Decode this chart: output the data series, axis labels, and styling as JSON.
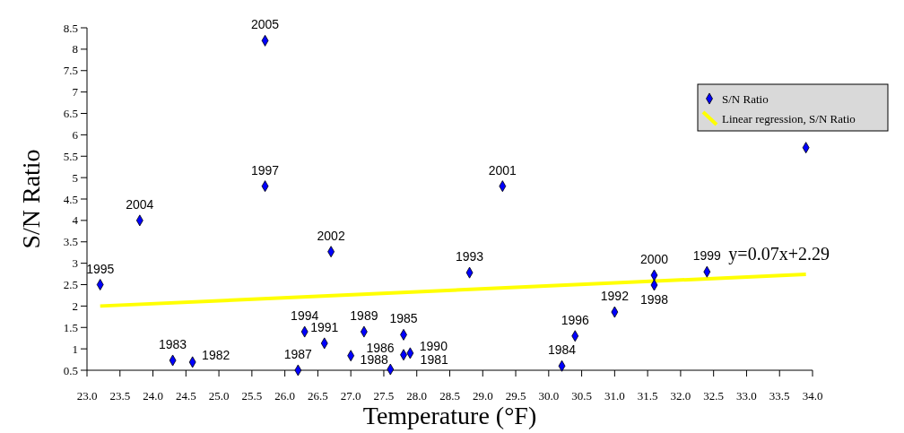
{
  "chart_data": {
    "type": "scatter",
    "xlabel": "Temperature (°F)",
    "ylabel": "S/N Ratio",
    "xlim": [
      23,
      34
    ],
    "ylim": [
      0.5,
      8.5
    ],
    "xticks": [
      {
        "value": 23,
        "label": "23.0"
      },
      {
        "value": 23.5,
        "label": "23.5"
      },
      {
        "value": 24,
        "label": "24.0"
      },
      {
        "value": 24.5,
        "label": "24.5"
      },
      {
        "value": 25,
        "label": "25.0"
      },
      {
        "value": 25.5,
        "label": "25.5"
      },
      {
        "value": 26,
        "label": "26.0"
      },
      {
        "value": 26.5,
        "label": "26.5"
      },
      {
        "value": 27,
        "label": "27.0"
      },
      {
        "value": 27.5,
        "label": "27.5"
      },
      {
        "value": 28,
        "label": "28.0"
      },
      {
        "value": 28.5,
        "label": "28.5"
      },
      {
        "value": 29,
        "label": "29.0"
      },
      {
        "value": 29.5,
        "label": "29.5"
      },
      {
        "value": 30,
        "label": "30.0"
      },
      {
        "value": 30.5,
        "label": "30.5"
      },
      {
        "value": 31,
        "label": "31.0"
      },
      {
        "value": 31.5,
        "label": "31.5"
      },
      {
        "value": 32,
        "label": "32.0"
      },
      {
        "value": 32.5,
        "label": "32.5"
      },
      {
        "value": 33,
        "label": "33.0"
      },
      {
        "value": 33.5,
        "label": "33.5"
      },
      {
        "value": 34,
        "label": "34.0"
      }
    ],
    "yticks": [
      0.5,
      1,
      1.5,
      2,
      2.5,
      3,
      3.5,
      4,
      4.5,
      5,
      5.5,
      6,
      6.5,
      7,
      7.5,
      8,
      8.5
    ],
    "legend": "top right",
    "series": [
      {
        "name": "S/N Ratio",
        "color": "#0000ff",
        "marker": "diamond",
        "x": [
          23.2,
          23.8,
          25.7,
          25.7,
          24.3,
          24.6,
          26.2,
          26.3,
          26.6,
          26.7,
          27.0,
          27.2,
          27.6,
          27.8,
          27.8,
          27.9,
          28.8,
          29.3,
          30.2,
          30.4,
          31.0,
          31.6,
          31.6,
          32.4,
          33.9
        ],
        "values": [
          2.5,
          4.0,
          8.2,
          4.8,
          0.73,
          0.69,
          0.5,
          1.4,
          1.13,
          3.27,
          0.84,
          1.4,
          0.52,
          1.33,
          0.86,
          0.9,
          2.78,
          4.8,
          0.6,
          1.3,
          1.86,
          2.72,
          2.49,
          2.8,
          5.7
        ]
      },
      {
        "name": "Linear regression, S/N Ratio",
        "type": "line",
        "color": "#ffff00",
        "x": [
          23.2,
          33.9
        ],
        "values": [
          2.0,
          2.74
        ]
      }
    ],
    "annotations": [
      {
        "text": "1995",
        "x": 23.2,
        "y": 2.5
      },
      {
        "text": "2004",
        "x": 23.8,
        "y": 4.0
      },
      {
        "text": "2005",
        "x": 25.7,
        "y": 8.2
      },
      {
        "text": "1997",
        "x": 25.7,
        "y": 4.8
      },
      {
        "text": "1983",
        "x": 24.3,
        "y": 0.73
      },
      {
        "text": "1982",
        "x": 24.6,
        "y": 0.69
      },
      {
        "text": "1987",
        "x": 26.2,
        "y": 0.5
      },
      {
        "text": "1994",
        "x": 26.3,
        "y": 1.4
      },
      {
        "text": "1991",
        "x": 26.6,
        "y": 1.13
      },
      {
        "text": "2002",
        "x": 26.7,
        "y": 3.27
      },
      {
        "text": "1988",
        "x": 27.0,
        "y": 0.84
      },
      {
        "text": "1989",
        "x": 27.2,
        "y": 1.4
      },
      {
        "text": "1981",
        "x": 27.6,
        "y": 0.52
      },
      {
        "text": "1985",
        "x": 27.8,
        "y": 1.33
      },
      {
        "text": "1986",
        "x": 27.8,
        "y": 0.86
      },
      {
        "text": "1990",
        "x": 27.9,
        "y": 0.9
      },
      {
        "text": "1993",
        "x": 28.8,
        "y": 2.78
      },
      {
        "text": "2001",
        "x": 29.3,
        "y": 4.8
      },
      {
        "text": "1984",
        "x": 30.2,
        "y": 0.6
      },
      {
        "text": "1996",
        "x": 30.4,
        "y": 1.3
      },
      {
        "text": "1992",
        "x": 31.0,
        "y": 1.86
      },
      {
        "text": "2000",
        "x": 31.6,
        "y": 2.72
      },
      {
        "text": "1998",
        "x": 31.6,
        "y": 2.49
      },
      {
        "text": "1999",
        "x": 32.4,
        "y": 2.8
      },
      {
        "text": "y=0.07x+2.29",
        "x": 33.9,
        "y": 2.74
      }
    ]
  }
}
